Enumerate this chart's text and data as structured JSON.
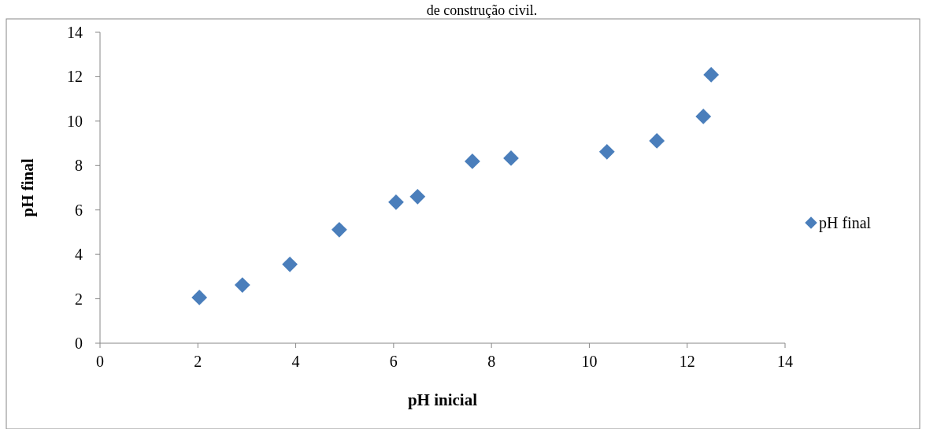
{
  "chart_data": {
    "type": "scatter",
    "title": "de construção civil.",
    "xlabel": "pH inicial",
    "ylabel": "pH final",
    "x": [
      2.03,
      2.91,
      3.88,
      4.89,
      6.05,
      6.49,
      7.61,
      8.4,
      10.36,
      11.38,
      12.33,
      12.49
    ],
    "series": [
      {
        "name": "pH final",
        "color": "#4a7ebb",
        "values": [
          2.06,
          2.62,
          3.55,
          5.11,
          6.35,
          6.6,
          8.19,
          8.33,
          8.62,
          9.11,
          10.21,
          12.09
        ]
      }
    ],
    "xlim": [
      0,
      14
    ],
    "xticks": [
      0,
      2,
      4,
      6,
      8,
      10,
      12,
      14
    ],
    "ylim": [
      0,
      14
    ],
    "yticks": [
      0,
      2,
      4,
      6,
      8,
      10,
      12,
      14
    ],
    "grid": false,
    "legend": "right",
    "marker": "diamond"
  }
}
